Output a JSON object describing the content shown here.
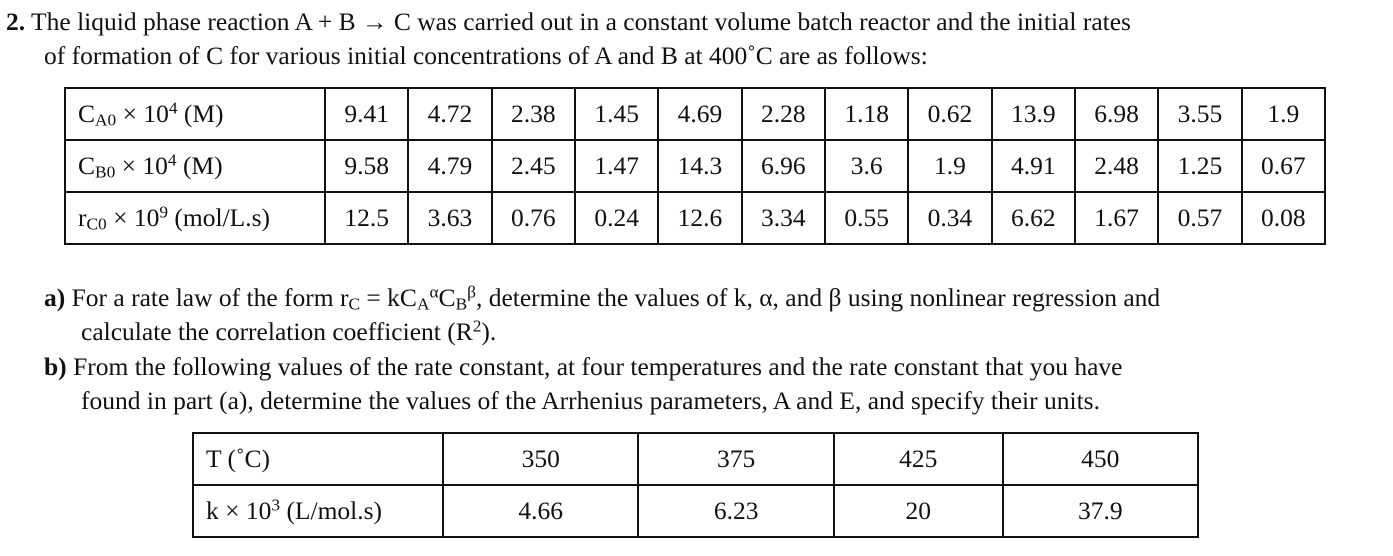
{
  "problem": {
    "number": "2.",
    "lines": [
      "The liquid phase reaction A + B → C was carried out in a constant volume batch reactor and the initial rates",
      "of formation of C for various initial concentrations of A and B at 400˚C are as follows:"
    ]
  },
  "table1": {
    "rows": [
      {
        "label": [
          "C",
          "A0",
          " × 10",
          "4",
          " (M)"
        ],
        "cells": [
          "9.41",
          "4.72",
          "2.38",
          "1.45",
          "4.69",
          "2.28",
          "1.18",
          "0.62",
          "13.9",
          "6.98",
          "3.55",
          "1.9"
        ]
      },
      {
        "label": [
          "C",
          "B0",
          " × 10",
          "4",
          " (M)"
        ],
        "cells": [
          "9.58",
          "4.79",
          "2.45",
          "1.47",
          "14.3",
          "6.96",
          "3.6",
          "1.9",
          "4.91",
          "2.48",
          "1.25",
          "0.67"
        ]
      },
      {
        "label": [
          "r",
          "C0",
          " × 10",
          "9",
          " (mol/L.s)"
        ],
        "cells": [
          "12.5",
          "3.63",
          "0.76",
          "0.24",
          "12.6",
          "3.34",
          "0.55",
          "0.34",
          "6.62",
          "1.67",
          "0.57",
          "0.08"
        ]
      }
    ]
  },
  "part_a": {
    "label": "a)",
    "parts": [
      "For a rate law of the form r",
      "C",
      " = kC",
      "A",
      "α",
      "C",
      "B",
      "β",
      ", determine the values of k, α, and β using nonlinear regression and",
      "calculate the correlation coefficient (R",
      "2",
      ")."
    ]
  },
  "part_b": {
    "label": "b)",
    "lines": [
      "From the following values of the rate constant, at four temperatures and the rate constant that you have",
      "found in part (a), determine the values of the Arrhenius parameters, A and E, and specify their units."
    ]
  },
  "table2": {
    "header": {
      "label": "T (˚C)",
      "cells": [
        "350",
        "375",
        "425",
        "450"
      ]
    },
    "row": {
      "label": [
        "k × 10",
        "3",
        " (L/mol.s)"
      ],
      "cells": [
        "4.66",
        "6.23",
        "20",
        "37.9"
      ]
    }
  }
}
